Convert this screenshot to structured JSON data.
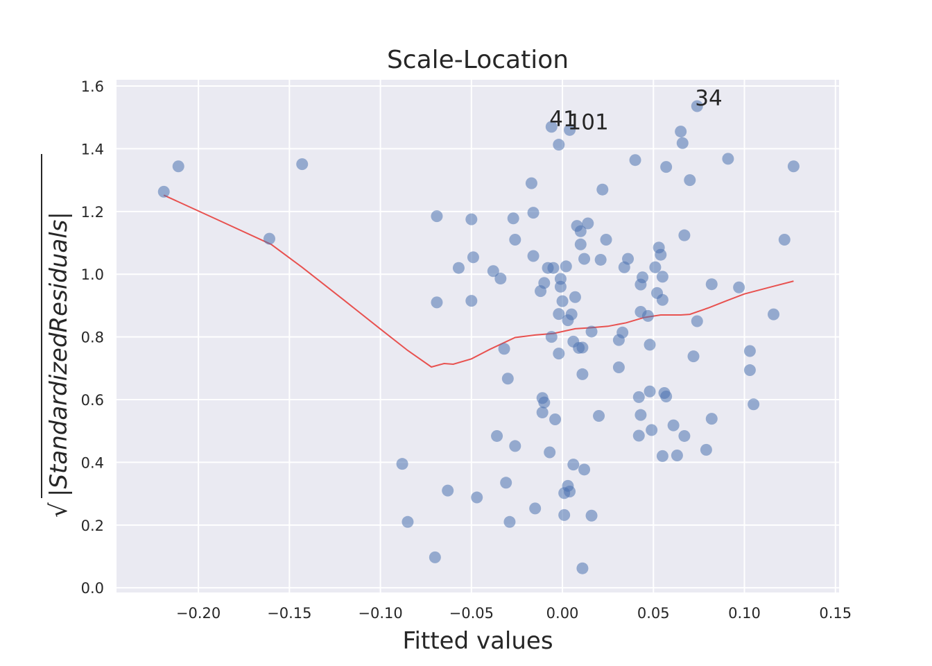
{
  "chart_data": {
    "type": "scatter",
    "title": "Scale-Location",
    "xlabel": "Fitted values",
    "ylabel_sqrt_symbol": "√",
    "ylabel": "|StandardizedResiduals|",
    "xlim": [
      -0.245,
      0.152
    ],
    "ylim": [
      -0.015,
      1.62
    ],
    "xticks": [
      -0.2,
      -0.15,
      -0.1,
      -0.05,
      0.0,
      0.05,
      0.1,
      0.15
    ],
    "xtick_labels": [
      "−0.20",
      "−0.15",
      "−0.10",
      "−0.05",
      "0.00",
      "0.05",
      "0.10",
      "0.15"
    ],
    "yticks": [
      0.0,
      0.2,
      0.4,
      0.6,
      0.8,
      1.0,
      1.2,
      1.4,
      1.6
    ],
    "ytick_labels": [
      "0.0",
      "0.2",
      "0.4",
      "0.6",
      "0.8",
      "1.0",
      "1.2",
      "1.4",
      "1.6"
    ],
    "grid": true,
    "colors": {
      "background": "#eaeaf2",
      "grid": "#ffffff",
      "points": "#4c72b0",
      "lowess": "#e8514f"
    },
    "points": [
      [
        -0.219,
        1.263
      ],
      [
        -0.211,
        1.344
      ],
      [
        -0.161,
        1.113
      ],
      [
        -0.143,
        1.351
      ],
      [
        -0.088,
        0.395
      ],
      [
        -0.085,
        0.21
      ],
      [
        -0.069,
        1.185
      ],
      [
        -0.069,
        0.91
      ],
      [
        -0.07,
        0.097
      ],
      [
        -0.063,
        0.31
      ],
      [
        -0.057,
        1.02
      ],
      [
        -0.05,
        1.175
      ],
      [
        -0.049,
        1.054
      ],
      [
        -0.05,
        0.915
      ],
      [
        -0.047,
        0.288
      ],
      [
        -0.038,
        1.01
      ],
      [
        -0.036,
        0.484
      ],
      [
        -0.034,
        0.986
      ],
      [
        -0.032,
        0.762
      ],
      [
        -0.031,
        0.335
      ],
      [
        -0.03,
        0.667
      ],
      [
        -0.029,
        0.21
      ],
      [
        -0.027,
        1.178
      ],
      [
        -0.026,
        1.11
      ],
      [
        -0.026,
        0.452
      ],
      [
        -0.017,
        1.29
      ],
      [
        -0.016,
        1.196
      ],
      [
        -0.016,
        1.058
      ],
      [
        -0.015,
        0.253
      ],
      [
        -0.012,
        0.946
      ],
      [
        -0.011,
        0.605
      ],
      [
        -0.011,
        0.559
      ],
      [
        -0.01,
        0.972
      ],
      [
        -0.01,
        0.591
      ],
      [
        -0.008,
        1.02
      ],
      [
        -0.007,
        0.432
      ],
      [
        -0.006,
        1.47
      ],
      [
        -0.006,
        0.8
      ],
      [
        -0.005,
        1.02
      ],
      [
        -0.004,
        0.537
      ],
      [
        -0.002,
        1.413
      ],
      [
        -0.002,
        0.873
      ],
      [
        -0.002,
        0.747
      ],
      [
        -0.001,
        0.985
      ],
      [
        -0.001,
        0.96
      ],
      [
        0.0,
        0.914
      ],
      [
        0.001,
        0.302
      ],
      [
        0.001,
        0.232
      ],
      [
        0.002,
        1.025
      ],
      [
        0.003,
        0.325
      ],
      [
        0.003,
        0.853
      ],
      [
        0.004,
        1.46
      ],
      [
        0.004,
        0.307
      ],
      [
        0.005,
        0.872
      ],
      [
        0.006,
        0.785
      ],
      [
        0.006,
        0.393
      ],
      [
        0.007,
        0.927
      ],
      [
        0.008,
        1.154
      ],
      [
        0.009,
        0.765
      ],
      [
        0.01,
        1.137
      ],
      [
        0.01,
        1.095
      ],
      [
        0.011,
        0.766
      ],
      [
        0.011,
        0.062
      ],
      [
        0.011,
        0.681
      ],
      [
        0.012,
        1.049
      ],
      [
        0.012,
        0.377
      ],
      [
        0.014,
        1.162
      ],
      [
        0.016,
        0.817
      ],
      [
        0.016,
        0.23
      ],
      [
        0.02,
        0.548
      ],
      [
        0.021,
        1.046
      ],
      [
        0.022,
        1.27
      ],
      [
        0.024,
        1.11
      ],
      [
        0.031,
        0.79
      ],
      [
        0.031,
        0.703
      ],
      [
        0.033,
        0.814
      ],
      [
        0.034,
        1.022
      ],
      [
        0.036,
        1.049
      ],
      [
        0.04,
        1.364
      ],
      [
        0.042,
        0.608
      ],
      [
        0.042,
        0.485
      ],
      [
        0.043,
        0.88
      ],
      [
        0.043,
        0.551
      ],
      [
        0.043,
        0.967
      ],
      [
        0.044,
        0.99
      ],
      [
        0.047,
        0.867
      ],
      [
        0.048,
        0.626
      ],
      [
        0.048,
        0.775
      ],
      [
        0.049,
        0.503
      ],
      [
        0.051,
        1.022
      ],
      [
        0.052,
        0.94
      ],
      [
        0.053,
        1.085
      ],
      [
        0.054,
        1.062
      ],
      [
        0.055,
        0.992
      ],
      [
        0.055,
        0.42
      ],
      [
        0.055,
        0.918
      ],
      [
        0.056,
        0.621
      ],
      [
        0.057,
        0.61
      ],
      [
        0.057,
        1.342
      ],
      [
        0.061,
        0.518
      ],
      [
        0.063,
        0.422
      ],
      [
        0.065,
        1.455
      ],
      [
        0.066,
        1.418
      ],
      [
        0.067,
        1.124
      ],
      [
        0.067,
        0.484
      ],
      [
        0.07,
        1.3
      ],
      [
        0.072,
        0.738
      ],
      [
        0.074,
        1.536
      ],
      [
        0.074,
        0.85
      ],
      [
        0.079,
        0.44
      ],
      [
        0.082,
        0.968
      ],
      [
        0.082,
        0.539
      ],
      [
        0.091,
        1.368
      ],
      [
        0.097,
        0.958
      ],
      [
        0.103,
        0.755
      ],
      [
        0.103,
        0.694
      ],
      [
        0.105,
        0.585
      ],
      [
        0.116,
        0.872
      ],
      [
        0.122,
        1.11
      ],
      [
        0.127,
        1.344
      ]
    ],
    "lowess": [
      [
        -0.219,
        1.252
      ],
      [
        -0.19,
        1.175
      ],
      [
        -0.16,
        1.095
      ],
      [
        -0.143,
        1.022
      ],
      [
        -0.12,
        0.917
      ],
      [
        -0.1,
        0.825
      ],
      [
        -0.085,
        0.757
      ],
      [
        -0.072,
        0.704
      ],
      [
        -0.065,
        0.715
      ],
      [
        -0.06,
        0.713
      ],
      [
        -0.05,
        0.73
      ],
      [
        -0.04,
        0.76
      ],
      [
        -0.032,
        0.782
      ],
      [
        -0.026,
        0.798
      ],
      [
        -0.015,
        0.806
      ],
      [
        -0.005,
        0.811
      ],
      [
        0.007,
        0.826
      ],
      [
        0.015,
        0.829
      ],
      [
        0.025,
        0.834
      ],
      [
        0.035,
        0.845
      ],
      [
        0.045,
        0.862
      ],
      [
        0.054,
        0.87
      ],
      [
        0.065,
        0.87
      ],
      [
        0.07,
        0.872
      ],
      [
        0.08,
        0.892
      ],
      [
        0.09,
        0.915
      ],
      [
        0.1,
        0.937
      ],
      [
        0.115,
        0.96
      ],
      [
        0.127,
        0.978
      ]
    ],
    "annotations": [
      {
        "text": "34",
        "x": 0.074,
        "y": 1.536
      },
      {
        "text": "41",
        "x": -0.006,
        "y": 1.47
      },
      {
        "text": "101",
        "x": 0.004,
        "y": 1.46
      }
    ]
  }
}
